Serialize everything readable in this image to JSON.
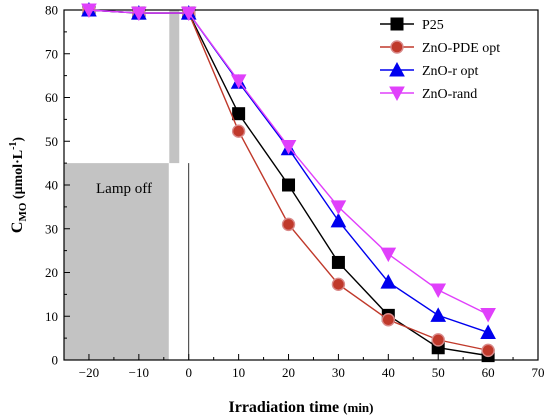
{
  "chart_data": {
    "type": "line",
    "xlabel_main": "Irradiation time",
    "xlabel_unit": "(min)",
    "ylabel": "CMO (μmol·L-1)",
    "ylabel_parts": {
      "main": "C",
      "sub": "MO",
      "unit_open": " (μmol·L",
      "unit_sup": "-1",
      "unit_close": ")"
    },
    "xlim": [
      -25,
      70
    ],
    "ylim": [
      0,
      80
    ],
    "x_ticks": [
      -20,
      -10,
      0,
      10,
      20,
      30,
      40,
      50,
      60,
      70
    ],
    "y_ticks": [
      0,
      10,
      20,
      30,
      40,
      50,
      60,
      70,
      80
    ],
    "annotation": "Lamp off",
    "legend_position": "top-right",
    "x": [
      -20,
      -10,
      0,
      10,
      20,
      30,
      40,
      50,
      60
    ],
    "series": [
      {
        "name": "P25",
        "color": "#000000",
        "marker": "square",
        "values": [
          80,
          79.3,
          79.3,
          56.3,
          40,
          22.3,
          10.2,
          2.8,
          1.0
        ]
      },
      {
        "name": "ZnO-PDE opt",
        "color": "#c0392b",
        "marker": "circle",
        "values": [
          80,
          79.3,
          79.3,
          52.3,
          31,
          17.3,
          9.2,
          4.6,
          2.2
        ]
      },
      {
        "name": "ZnO-r opt",
        "color": "#0000ee",
        "marker": "triangle-up",
        "values": [
          80,
          79.3,
          79.3,
          63.5,
          48.3,
          31.8,
          17.8,
          10.2,
          6.3
        ]
      },
      {
        "name": "ZnO-rand",
        "color": "#e040fb",
        "marker": "triangle-down",
        "values": [
          80,
          79.3,
          79.3,
          63.8,
          48.8,
          35,
          24.2,
          16,
          10.4
        ]
      }
    ]
  }
}
